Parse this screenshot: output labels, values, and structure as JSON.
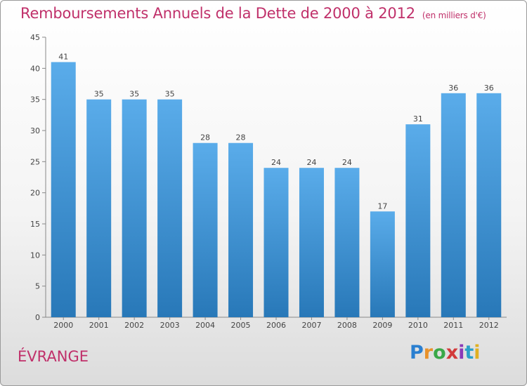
{
  "chart_data": {
    "type": "bar",
    "title": "Remboursements Annuels de la Dette de 2000 à 2012",
    "subtitle": "(en milliers d'€)",
    "categories": [
      "2000",
      "2001",
      "2002",
      "2003",
      "2004",
      "2005",
      "2006",
      "2007",
      "2008",
      "2009",
      "2010",
      "2011",
      "2012"
    ],
    "values": [
      41,
      35,
      35,
      35,
      28,
      28,
      24,
      24,
      24,
      17,
      31,
      36,
      36
    ],
    "ylim": [
      0,
      45
    ],
    "yticks": [
      0,
      5,
      10,
      15,
      20,
      25,
      30,
      35,
      40,
      45
    ],
    "xlabel": "",
    "ylabel": "",
    "grid": false,
    "bar_color_top": "#5aacea",
    "bar_color_bottom": "#2878b8"
  },
  "footer": {
    "city": "ÉVRANGE",
    "logo_text": "Proxiti",
    "logo_colors": [
      "#2a7fd0",
      "#e8912a",
      "#3aa848",
      "#d23a3a",
      "#8a3ab8",
      "#2aa0c8",
      "#e0b020"
    ]
  }
}
